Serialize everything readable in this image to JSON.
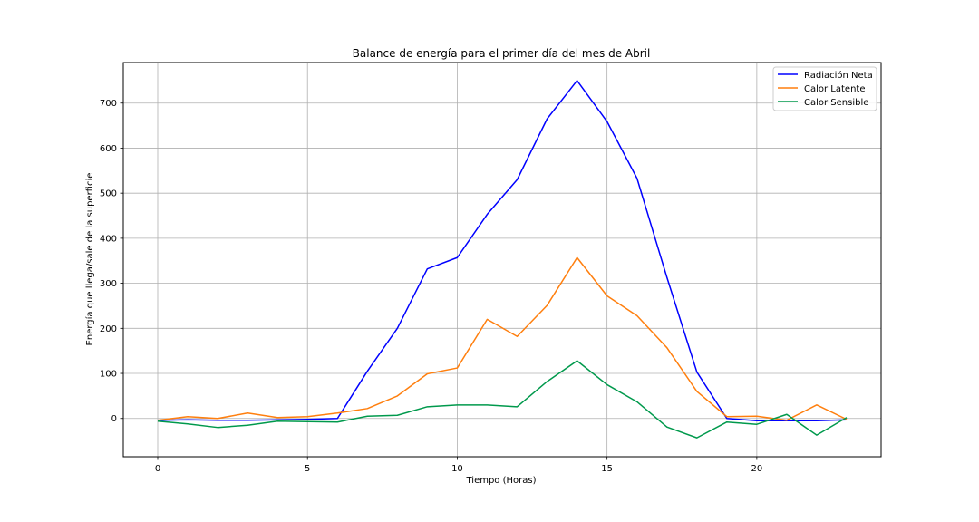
{
  "chart_data": {
    "type": "line",
    "title": "Balance de energía para el primer día del mes de Abril",
    "xlabel": "Tiempo (Horas)",
    "ylabel": "Energía que llega/sale de la superficie",
    "x": [
      0,
      1,
      2,
      3,
      4,
      5,
      6,
      7,
      8,
      9,
      10,
      11,
      12,
      13,
      14,
      15,
      16,
      17,
      18,
      19,
      20,
      21,
      22,
      23
    ],
    "xlim": [
      -1.15,
      24.15
    ],
    "ylim": [
      -85,
      790
    ],
    "xticks": [
      0,
      5,
      10,
      15,
      20
    ],
    "yticks": [
      0,
      100,
      200,
      300,
      400,
      500,
      600,
      700
    ],
    "grid": true,
    "legend_position": "top-right",
    "series": [
      {
        "name": "Radiación Neta",
        "color": "#0000ff",
        "values": [
          -4,
          -3,
          -4,
          -4,
          -3,
          -2,
          0,
          105,
          200,
          332,
          357,
          453,
          530,
          665,
          750,
          659,
          533,
          313,
          103,
          0,
          -5,
          -5,
          -5,
          -3
        ]
      },
      {
        "name": "Calor Latente",
        "color": "#ff7f0e",
        "values": [
          -4,
          4,
          0,
          12,
          2,
          4,
          12,
          22,
          50,
          99,
          112,
          220,
          182,
          251,
          357,
          272,
          228,
          157,
          60,
          4,
          5,
          -4,
          30,
          -2
        ]
      },
      {
        "name": "Calor Sensible",
        "color": "#00994c",
        "values": [
          -6,
          -12,
          -20,
          -15,
          -6,
          -7,
          -8,
          5,
          7,
          26,
          30,
          30,
          26,
          82,
          128,
          75,
          37,
          -19,
          -43,
          -8,
          -13,
          9,
          -37,
          2
        ]
      }
    ]
  }
}
